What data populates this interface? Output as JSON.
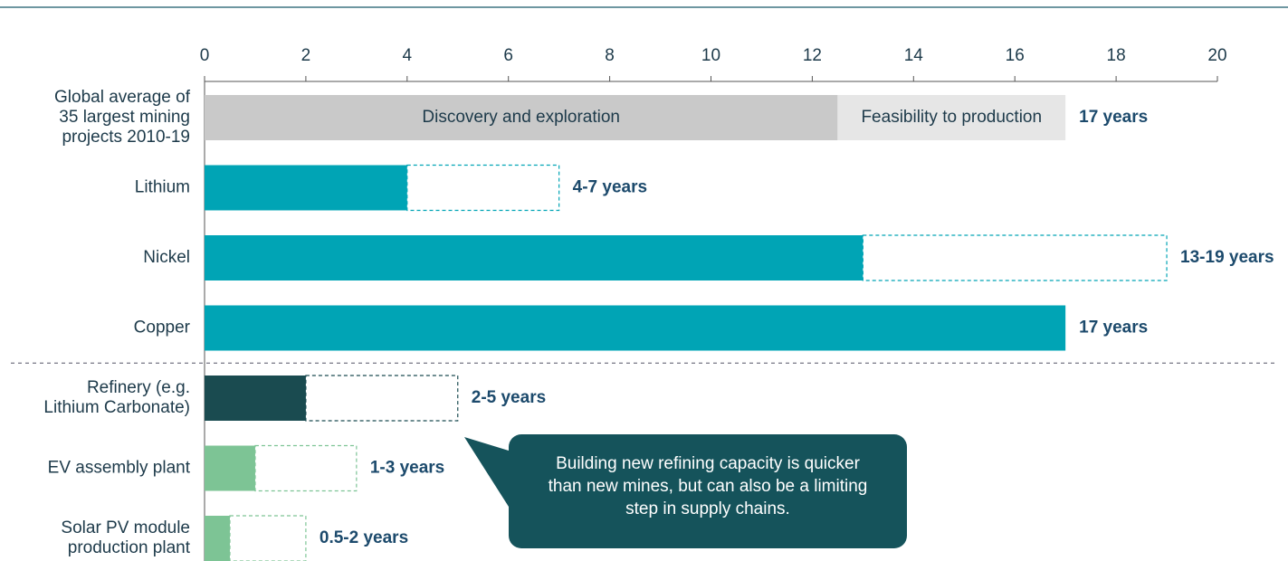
{
  "chart_data": {
    "type": "bar",
    "orientation": "horizontal",
    "xlim": [
      0,
      20
    ],
    "xticks": [
      0,
      2,
      4,
      6,
      8,
      10,
      12,
      14,
      16,
      18,
      20
    ],
    "groups": [
      {
        "bars": [
          {
            "category": [
              "Global average of",
              "35 largest mining",
              "projects 2010-19"
            ],
            "segments": [
              {
                "name": "Discovery and exploration",
                "value": 12.5,
                "color": "#c9c9c9"
              },
              {
                "name": "Feasibility to production",
                "value": 4.5,
                "color": "#e6e6e6"
              }
            ],
            "value_label": "17 years"
          },
          {
            "category": [
              "Lithium"
            ],
            "segments": [
              {
                "value": 4,
                "color": "#00a4b5"
              }
            ],
            "range": 3,
            "value_label": "4-7 years"
          },
          {
            "category": [
              "Nickel"
            ],
            "segments": [
              {
                "value": 13,
                "color": "#00a4b5"
              }
            ],
            "range": 6,
            "value_label": "13-19 years"
          },
          {
            "category": [
              "Copper"
            ],
            "segments": [
              {
                "value": 17,
                "color": "#00a4b5"
              }
            ],
            "value_label": "17 years"
          }
        ]
      },
      {
        "bars": [
          {
            "category": [
              "Refinery (e.g.",
              "Lithium Carbonate)"
            ],
            "segments": [
              {
                "value": 2,
                "color": "#1a4b50"
              }
            ],
            "range": 3,
            "value_label": "2-5 years"
          },
          {
            "category": [
              "EV assembly plant"
            ],
            "segments": [
              {
                "value": 1,
                "color": "#7dc495"
              }
            ],
            "range": 2,
            "value_label": "1-3 years"
          },
          {
            "category": [
              "Solar PV module",
              "production plant"
            ],
            "segments": [
              {
                "value": 0.5,
                "color": "#7dc495"
              }
            ],
            "range": 1.5,
            "value_label": "0.5-2 years"
          }
        ]
      }
    ],
    "annotation": "Building new refining capacity is quicker than new mines, but can also be a limiting step in supply chains."
  }
}
